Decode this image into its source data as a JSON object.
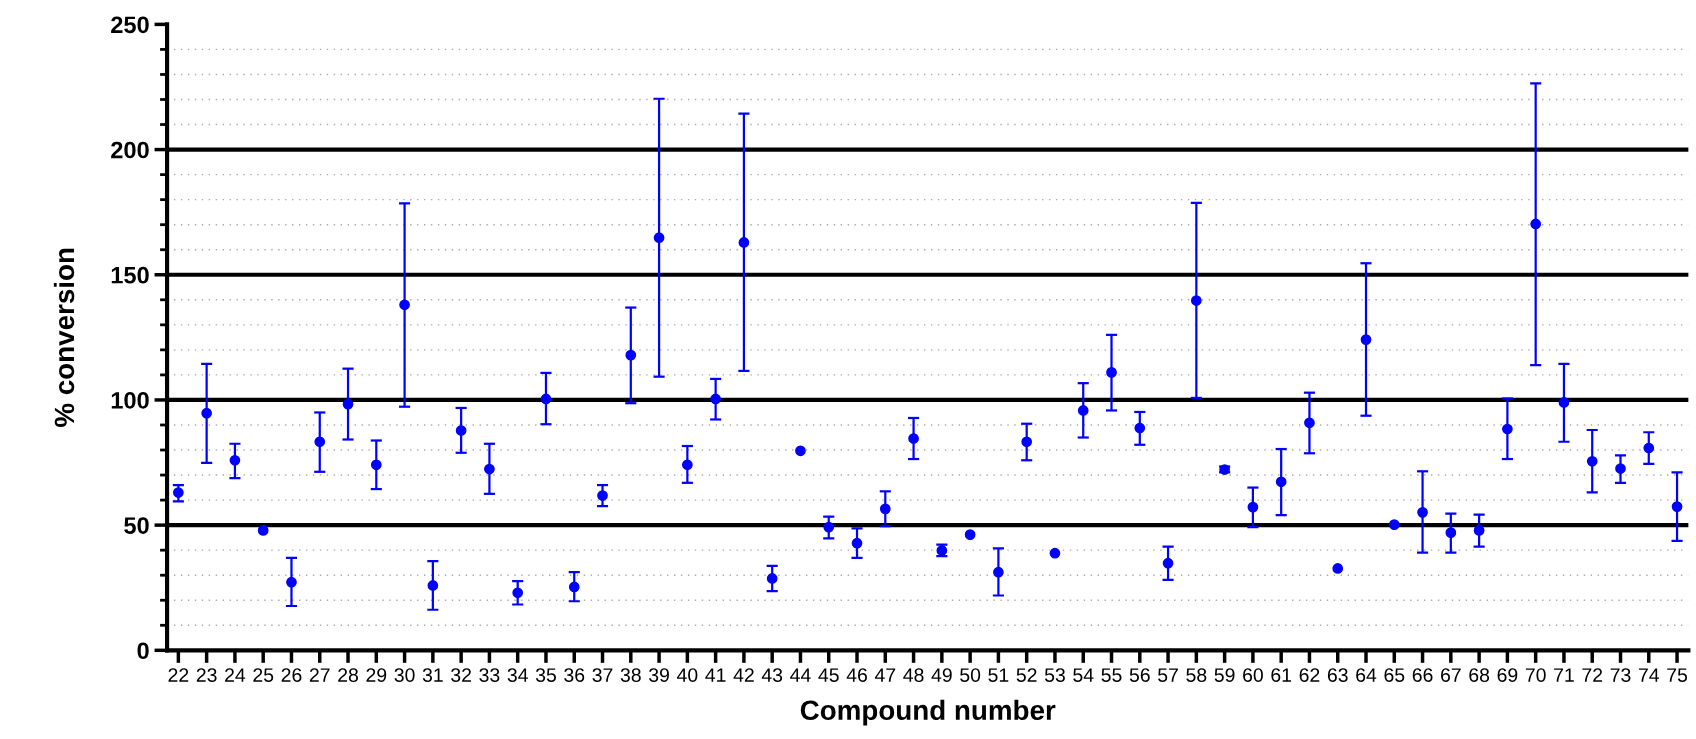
{
  "chart_data": {
    "type": "scatter",
    "xlabel": "Compound number",
    "ylabel": "% conversion",
    "categories": [
      "22",
      "23",
      "24",
      "25",
      "26",
      "27",
      "28",
      "29",
      "30",
      "31",
      "32",
      "33",
      "34",
      "35",
      "36",
      "37",
      "38",
      "39",
      "40",
      "41",
      "42",
      "43",
      "44",
      "45",
      "46",
      "47",
      "48",
      "49",
      "50",
      "51",
      "52",
      "53",
      "54",
      "55",
      "56",
      "57",
      "58",
      "59",
      "60",
      "61",
      "62",
      "63",
      "64",
      "65",
      "66",
      "67",
      "68",
      "69",
      "70",
      "71",
      "72",
      "73",
      "74",
      "75"
    ],
    "series": [
      {
        "color": "#0000ff",
        "values": [
          63,
          94.7,
          75.9,
          47.9,
          27.2,
          83.3,
          98.3,
          74.1,
          138,
          25.9,
          87.8,
          72.4,
          23,
          100.4,
          25.3,
          61.8,
          117.9,
          164.8,
          74.1,
          100.4,
          162.9,
          28.7,
          79.7,
          49.2,
          42.8,
          56.5,
          84.6,
          39.9,
          46.2,
          31.2,
          83.3,
          38.8,
          95.8,
          111,
          88.8,
          34.8,
          139.7,
          72.2,
          57.2,
          67.3,
          90.9,
          32.7,
          124.1,
          50.2,
          55.1,
          47,
          47.9,
          88.4,
          170.3,
          99,
          75.5,
          72.6,
          80.8,
          57.4
        ],
        "errors": [
          [
            59.5,
            66
          ],
          [
            74.9,
            114.4
          ],
          [
            68.8,
            82.5
          ],
          null,
          [
            17.7,
            36.9
          ],
          [
            71.3,
            95
          ],
          [
            84.2,
            112.5
          ],
          [
            64.4,
            83.8
          ],
          [
            97.3,
            178.5
          ],
          [
            16.2,
            35.6
          ],
          [
            78.9,
            96.8
          ],
          [
            62.5,
            82.5
          ],
          [
            18.3,
            27.6
          ],
          [
            90.3,
            110.8
          ],
          [
            19.6,
            31.2
          ],
          [
            57.6,
            66
          ],
          [
            98.7,
            136.9
          ],
          [
            109.3,
            220.3
          ],
          [
            66.9,
            81.6
          ],
          [
            92.2,
            108.4
          ],
          [
            111.6,
            214.4
          ],
          [
            23.6,
            33.7
          ],
          null,
          [
            44.7,
            53.4
          ],
          [
            36.9,
            48.7
          ],
          [
            49.6,
            63.5
          ],
          [
            76.4,
            92.8
          ],
          [
            37.6,
            42.2
          ],
          null,
          [
            21.9,
            40.7
          ],
          [
            75.9,
            90.5
          ],
          null,
          [
            85,
            106.7
          ],
          [
            95.8,
            126
          ],
          [
            82.1,
            95.2
          ],
          [
            28.1,
            41.4
          ],
          [
            100.8,
            178.7
          ],
          [
            71.1,
            73.4
          ],
          [
            49.2,
            65
          ],
          [
            54,
            80.4
          ],
          [
            78.7,
            102.9
          ],
          null,
          [
            93.7,
            154.6
          ],
          null,
          [
            39,
            71.5
          ],
          [
            39,
            54.6
          ],
          [
            41.4,
            54.2
          ],
          [
            76.4,
            100.6
          ],
          [
            113.9,
            226.4
          ],
          [
            83.3,
            114.4
          ],
          [
            63.1,
            88
          ],
          [
            66.9,
            77.9
          ],
          [
            74.5,
            87.1
          ],
          [
            43.7,
            71.1
          ]
        ]
      }
    ],
    "ylim": [
      0,
      250
    ],
    "yticks": [
      0,
      50,
      100,
      150,
      200,
      250
    ],
    "grid": "y",
    "marker": "circle"
  }
}
